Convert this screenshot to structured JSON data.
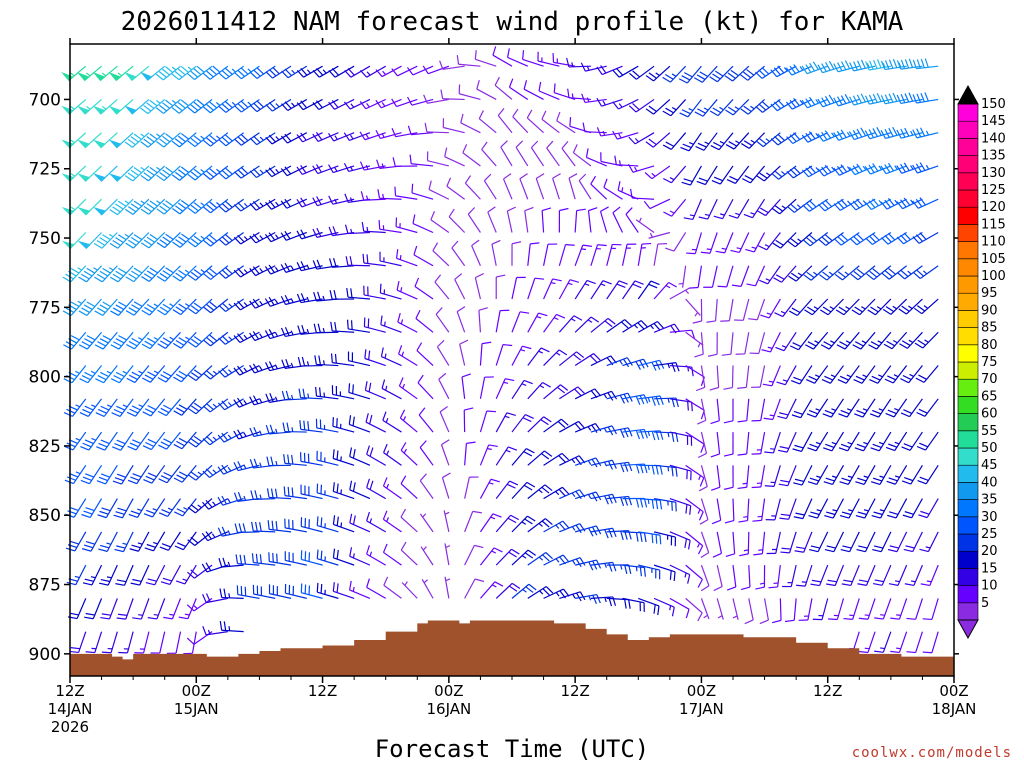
{
  "chart_data": {
    "type": "wind-barb-time-height",
    "title": "2026011412 NAM forecast wind profile (kt) for KAMA",
    "xlabel": "Forecast Time (UTC)",
    "ylabel": "",
    "credit": "coolwx.com/models",
    "x_range_hours": [
      0,
      84
    ],
    "y_range_hpa": [
      680,
      908
    ],
    "y_ticks": [
      700,
      725,
      750,
      775,
      800,
      825,
      850,
      875,
      900
    ],
    "x_ticks": [
      {
        "hour": 0,
        "line1": "12Z",
        "line2": "14JAN",
        "line3": "2026"
      },
      {
        "hour": 12,
        "line1": "00Z",
        "line2": "15JAN",
        "line3": ""
      },
      {
        "hour": 24,
        "line1": "12Z",
        "line2": "",
        "line3": ""
      },
      {
        "hour": 36,
        "line1": "00Z",
        "line2": "16JAN",
        "line3": ""
      },
      {
        "hour": 48,
        "line1": "12Z",
        "line2": "",
        "line3": ""
      },
      {
        "hour": 60,
        "line1": "00Z",
        "line2": "17JAN",
        "line3": ""
      },
      {
        "hour": 72,
        "line1": "12Z",
        "line2": "",
        "line3": ""
      },
      {
        "hour": 84,
        "line1": "00Z",
        "line2": "18JAN",
        "line3": ""
      }
    ],
    "colorbar": {
      "unit": "kt",
      "levels": [
        5,
        10,
        15,
        20,
        25,
        30,
        35,
        40,
        45,
        50,
        55,
        60,
        65,
        70,
        75,
        80,
        85,
        90,
        95,
        100,
        105,
        110,
        115,
        120,
        125,
        130,
        135,
        140,
        145,
        150
      ],
      "colors": [
        "#8a2be2",
        "#6600ff",
        "#3300e6",
        "#0000cc",
        "#0033e6",
        "#0055ff",
        "#0077ff",
        "#1199f0",
        "#22bbee",
        "#33ddcc",
        "#22dd99",
        "#22cc55",
        "#33dd22",
        "#66ee11",
        "#ccee00",
        "#ffff00",
        "#ffdd00",
        "#ffcc00",
        "#ffaa00",
        "#ff9900",
        "#ff8800",
        "#ff7700",
        "#ff4400",
        "#ff0000",
        "#ff0033",
        "#ff0055",
        "#ff0077",
        "#ff0099",
        "#ff00bb",
        "#ff00dd"
      ]
    },
    "terrain_pressure_hpa": [
      {
        "hour": 0,
        "p": 900
      },
      {
        "hour": 4,
        "p": 901
      },
      {
        "hour": 5,
        "p": 902
      },
      {
        "hour": 6,
        "p": 900
      },
      {
        "hour": 8,
        "p": 900
      },
      {
        "hour": 13,
        "p": 901
      },
      {
        "hour": 16,
        "p": 900
      },
      {
        "hour": 18,
        "p": 899
      },
      {
        "hour": 20,
        "p": 898
      },
      {
        "hour": 24,
        "p": 897
      },
      {
        "hour": 27,
        "p": 895
      },
      {
        "hour": 30,
        "p": 892
      },
      {
        "hour": 33,
        "p": 889
      },
      {
        "hour": 34,
        "p": 888
      },
      {
        "hour": 36,
        "p": 888
      },
      {
        "hour": 37,
        "p": 889
      },
      {
        "hour": 38,
        "p": 888
      },
      {
        "hour": 44,
        "p": 888
      },
      {
        "hour": 46,
        "p": 889
      },
      {
        "hour": 49,
        "p": 891
      },
      {
        "hour": 51,
        "p": 893
      },
      {
        "hour": 53,
        "p": 895
      },
      {
        "hour": 55,
        "p": 894
      },
      {
        "hour": 57,
        "p": 893
      },
      {
        "hour": 61,
        "p": 893
      },
      {
        "hour": 64,
        "p": 894
      },
      {
        "hour": 66,
        "p": 894
      },
      {
        "hour": 69,
        "p": 896
      },
      {
        "hour": 72,
        "p": 898
      },
      {
        "hour": 75,
        "p": 900
      },
      {
        "hour": 79,
        "p": 901
      },
      {
        "hour": 82,
        "p": 901
      },
      {
        "hour": 84,
        "p": 900
      }
    ],
    "series": [
      {
        "hour": 0,
        "levels": [
          {
            "p": 690,
            "dir": 230,
            "spd": 55
          },
          {
            "p": 710,
            "dir": 228,
            "spd": 55
          },
          {
            "p": 740,
            "dir": 225,
            "spd": 55
          },
          {
            "p": 770,
            "dir": 222,
            "spd": 45
          },
          {
            "p": 800,
            "dir": 218,
            "spd": 35
          },
          {
            "p": 830,
            "dir": 215,
            "spd": 35
          },
          {
            "p": 860,
            "dir": 210,
            "spd": 30
          },
          {
            "p": 890,
            "dir": 200,
            "spd": 20
          }
        ]
      },
      {
        "hour": 6,
        "levels": [
          {
            "p": 690,
            "dir": 230,
            "spd": 55
          },
          {
            "p": 710,
            "dir": 228,
            "spd": 50
          },
          {
            "p": 740,
            "dir": 225,
            "spd": 45
          },
          {
            "p": 770,
            "dir": 222,
            "spd": 40
          },
          {
            "p": 800,
            "dir": 218,
            "spd": 35
          },
          {
            "p": 830,
            "dir": 212,
            "spd": 30
          },
          {
            "p": 860,
            "dir": 205,
            "spd": 25
          },
          {
            "p": 890,
            "dir": 195,
            "spd": 15
          }
        ]
      },
      {
        "hour": 12,
        "levels": [
          {
            "p": 690,
            "dir": 232,
            "spd": 45
          },
          {
            "p": 710,
            "dir": 230,
            "spd": 40
          },
          {
            "p": 740,
            "dir": 228,
            "spd": 40
          },
          {
            "p": 770,
            "dir": 225,
            "spd": 35
          },
          {
            "p": 800,
            "dir": 222,
            "spd": 30
          },
          {
            "p": 830,
            "dir": 220,
            "spd": 30
          },
          {
            "p": 860,
            "dir": 215,
            "spd": 20
          },
          {
            "p": 890,
            "dir": 190,
            "spd": 10
          }
        ]
      },
      {
        "hour": 18,
        "levels": [
          {
            "p": 690,
            "dir": 235,
            "spd": 35
          },
          {
            "p": 710,
            "dir": 235,
            "spd": 30
          },
          {
            "p": 740,
            "dir": 238,
            "spd": 25
          },
          {
            "p": 770,
            "dir": 240,
            "spd": 25
          },
          {
            "p": 800,
            "dir": 245,
            "spd": 25
          },
          {
            "p": 830,
            "dir": 255,
            "spd": 25
          },
          {
            "p": 860,
            "dir": 270,
            "spd": 30
          },
          {
            "p": 880,
            "dir": 280,
            "spd": 30
          }
        ]
      },
      {
        "hour": 24,
        "levels": [
          {
            "p": 690,
            "dir": 240,
            "spd": 25
          },
          {
            "p": 710,
            "dir": 245,
            "spd": 20
          },
          {
            "p": 740,
            "dir": 250,
            "spd": 20
          },
          {
            "p": 770,
            "dir": 260,
            "spd": 25
          },
          {
            "p": 800,
            "dir": 270,
            "spd": 25
          },
          {
            "p": 830,
            "dir": 280,
            "spd": 30
          },
          {
            "p": 860,
            "dir": 285,
            "spd": 30
          },
          {
            "p": 880,
            "dir": 285,
            "spd": 30
          }
        ]
      },
      {
        "hour": 30,
        "levels": [
          {
            "p": 690,
            "dir": 240,
            "spd": 15
          },
          {
            "p": 710,
            "dir": 250,
            "spd": 15
          },
          {
            "p": 740,
            "dir": 270,
            "spd": 15
          },
          {
            "p": 770,
            "dir": 280,
            "spd": 20
          },
          {
            "p": 800,
            "dir": 290,
            "spd": 20
          },
          {
            "p": 830,
            "dir": 300,
            "spd": 20
          },
          {
            "p": 860,
            "dir": 300,
            "spd": 15
          },
          {
            "p": 880,
            "dir": 300,
            "spd": 10
          }
        ]
      },
      {
        "hour": 36,
        "levels": [
          {
            "p": 690,
            "dir": 250,
            "spd": 10
          },
          {
            "p": 710,
            "dir": 270,
            "spd": 10
          },
          {
            "p": 740,
            "dir": 300,
            "spd": 10
          },
          {
            "p": 770,
            "dir": 320,
            "spd": 10
          },
          {
            "p": 800,
            "dir": 330,
            "spd": 10
          },
          {
            "p": 830,
            "dir": 340,
            "spd": 10
          },
          {
            "p": 860,
            "dir": 350,
            "spd": 5
          }
        ]
      },
      {
        "hour": 42,
        "levels": [
          {
            "p": 690,
            "dir": 300,
            "spd": 10
          },
          {
            "p": 710,
            "dir": 320,
            "spd": 10
          },
          {
            "p": 740,
            "dir": 340,
            "spd": 10
          },
          {
            "p": 770,
            "dir": 10,
            "spd": 10
          },
          {
            "p": 800,
            "dir": 30,
            "spd": 15
          },
          {
            "p": 830,
            "dir": 40,
            "spd": 20
          },
          {
            "p": 860,
            "dir": 45,
            "spd": 25
          },
          {
            "p": 880,
            "dir": 50,
            "spd": 25
          }
        ]
      },
      {
        "hour": 48,
        "levels": [
          {
            "p": 690,
            "dir": 280,
            "spd": 15
          },
          {
            "p": 710,
            "dir": 300,
            "spd": 10
          },
          {
            "p": 740,
            "dir": 350,
            "spd": 10
          },
          {
            "p": 770,
            "dir": 30,
            "spd": 15
          },
          {
            "p": 800,
            "dir": 60,
            "spd": 20
          },
          {
            "p": 830,
            "dir": 70,
            "spd": 25
          },
          {
            "p": 860,
            "dir": 75,
            "spd": 30
          },
          {
            "p": 880,
            "dir": 80,
            "spd": 25
          }
        ]
      },
      {
        "hour": 54,
        "levels": [
          {
            "p": 690,
            "dir": 240,
            "spd": 20
          },
          {
            "p": 710,
            "dir": 250,
            "spd": 15
          },
          {
            "p": 740,
            "dir": 300,
            "spd": 15
          },
          {
            "p": 770,
            "dir": 30,
            "spd": 20
          },
          {
            "p": 800,
            "dir": 80,
            "spd": 35
          },
          {
            "p": 830,
            "dir": 90,
            "spd": 35
          },
          {
            "p": 860,
            "dir": 100,
            "spd": 30
          },
          {
            "p": 880,
            "dir": 110,
            "spd": 20
          }
        ]
      },
      {
        "hour": 60,
        "levels": [
          {
            "p": 690,
            "dir": 220,
            "spd": 30
          },
          {
            "p": 710,
            "dir": 215,
            "spd": 25
          },
          {
            "p": 740,
            "dir": 200,
            "spd": 15
          },
          {
            "p": 770,
            "dir": 180,
            "spd": 10
          },
          {
            "p": 800,
            "dir": 170,
            "spd": 10
          },
          {
            "p": 830,
            "dir": 165,
            "spd": 10
          },
          {
            "p": 860,
            "dir": 160,
            "spd": 10
          },
          {
            "p": 880,
            "dir": 160,
            "spd": 5
          }
        ]
      },
      {
        "hour": 66,
        "levels": [
          {
            "p": 690,
            "dir": 230,
            "spd": 30
          },
          {
            "p": 710,
            "dir": 225,
            "spd": 25
          },
          {
            "p": 740,
            "dir": 210,
            "spd": 15
          },
          {
            "p": 770,
            "dir": 200,
            "spd": 10
          },
          {
            "p": 800,
            "dir": 190,
            "spd": 10
          },
          {
            "p": 830,
            "dir": 190,
            "spd": 15
          },
          {
            "p": 860,
            "dir": 185,
            "spd": 15
          },
          {
            "p": 880,
            "dir": 170,
            "spd": 10
          }
        ]
      },
      {
        "hour": 72,
        "levels": [
          {
            "p": 690,
            "dir": 250,
            "spd": 40
          },
          {
            "p": 710,
            "dir": 245,
            "spd": 35
          },
          {
            "p": 740,
            "dir": 235,
            "spd": 30
          },
          {
            "p": 770,
            "dir": 225,
            "spd": 25
          },
          {
            "p": 800,
            "dir": 215,
            "spd": 25
          },
          {
            "p": 830,
            "dir": 210,
            "spd": 25
          },
          {
            "p": 860,
            "dir": 205,
            "spd": 20
          },
          {
            "p": 880,
            "dir": 195,
            "spd": 15
          }
        ]
      },
      {
        "hour": 78,
        "levels": [
          {
            "p": 690,
            "dir": 260,
            "spd": 45
          },
          {
            "p": 710,
            "dir": 255,
            "spd": 40
          },
          {
            "p": 740,
            "dir": 240,
            "spd": 35
          },
          {
            "p": 770,
            "dir": 225,
            "spd": 25
          },
          {
            "p": 800,
            "dir": 215,
            "spd": 25
          },
          {
            "p": 830,
            "dir": 210,
            "spd": 25
          },
          {
            "p": 860,
            "dir": 205,
            "spd": 20
          },
          {
            "p": 880,
            "dir": 200,
            "spd": 15
          }
        ]
      },
      {
        "hour": 84,
        "levels": [
          {
            "p": 690,
            "dir": 265,
            "spd": 40
          },
          {
            "p": 710,
            "dir": 258,
            "spd": 35
          },
          {
            "p": 740,
            "dir": 245,
            "spd": 30
          },
          {
            "p": 770,
            "dir": 230,
            "spd": 25
          },
          {
            "p": 800,
            "dir": 220,
            "spd": 20
          },
          {
            "p": 830,
            "dir": 215,
            "spd": 20
          },
          {
            "p": 860,
            "dir": 205,
            "spd": 15
          },
          {
            "p": 880,
            "dir": 195,
            "spd": 10
          }
        ]
      }
    ]
  }
}
